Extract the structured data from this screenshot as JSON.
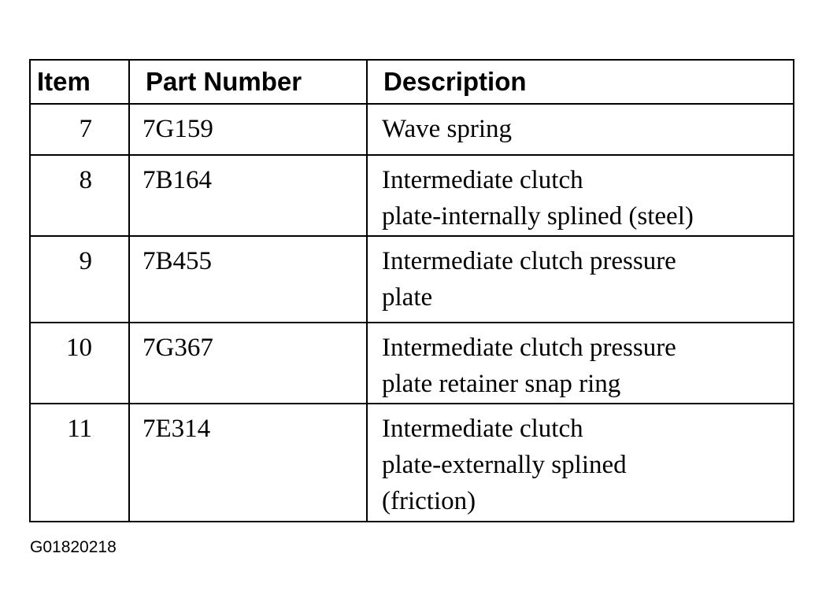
{
  "table": {
    "headers": [
      "Item",
      "Part Number",
      "Description"
    ],
    "rows": [
      {
        "item": "7",
        "part": "7G159",
        "desc": [
          "Wave spring"
        ]
      },
      {
        "item": "8",
        "part": "7B164",
        "desc": [
          "Intermediate clutch",
          "plate-internally splined (steel)"
        ]
      },
      {
        "item": "9",
        "part": "7B455",
        "desc": [
          "Intermediate clutch pressure",
          "plate"
        ]
      },
      {
        "item": "10",
        "part": "7G367",
        "desc": [
          "Intermediate clutch pressure",
          "plate retainer snap ring"
        ]
      },
      {
        "item": "11",
        "part": "7E314",
        "desc": [
          "Intermediate clutch",
          "plate-externally splined",
          "(friction)"
        ]
      }
    ]
  },
  "caption": "G01820218"
}
